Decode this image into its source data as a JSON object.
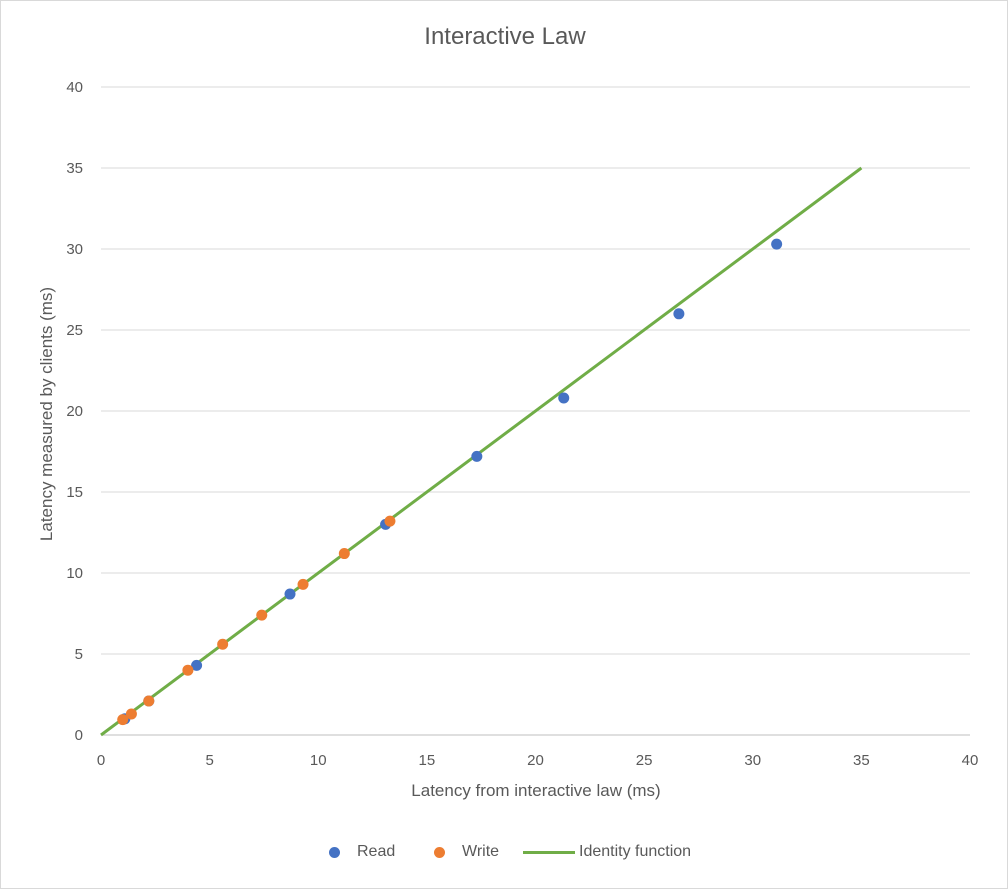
{
  "chart_data": {
    "type": "scatter",
    "title": "Interactive Law",
    "xlabel": "Latency from interactive law (ms)",
    "ylabel": "Latency measured by clients (ms)",
    "xlim": [
      0,
      40
    ],
    "ylim": [
      0,
      40
    ],
    "xticks": [
      0,
      5,
      10,
      15,
      20,
      25,
      30,
      35,
      40
    ],
    "yticks": [
      0,
      5,
      10,
      15,
      20,
      25,
      30,
      35,
      40
    ],
    "grid": "horizontal",
    "legend_position": "bottom",
    "series": [
      {
        "name": "Read",
        "color": "#4472c4",
        "kind": "scatter",
        "points": [
          [
            1.1,
            1.0
          ],
          [
            2.2,
            2.1
          ],
          [
            4.4,
            4.3
          ],
          [
            8.7,
            8.7
          ],
          [
            13.1,
            13.0
          ],
          [
            17.3,
            17.2
          ],
          [
            21.3,
            20.8
          ],
          [
            26.6,
            26.0
          ],
          [
            31.1,
            30.3
          ]
        ]
      },
      {
        "name": "Write",
        "color": "#ed7d31",
        "kind": "scatter",
        "points": [
          [
            1.0,
            0.95
          ],
          [
            1.4,
            1.3
          ],
          [
            2.2,
            2.1
          ],
          [
            4.0,
            4.0
          ],
          [
            5.6,
            5.6
          ],
          [
            7.4,
            7.4
          ],
          [
            9.3,
            9.3
          ],
          [
            11.2,
            11.2
          ],
          [
            13.3,
            13.2
          ]
        ]
      },
      {
        "name": "Identity function",
        "color": "#70ad47",
        "kind": "line",
        "points": [
          [
            0,
            0
          ],
          [
            35,
            35
          ]
        ]
      }
    ]
  }
}
